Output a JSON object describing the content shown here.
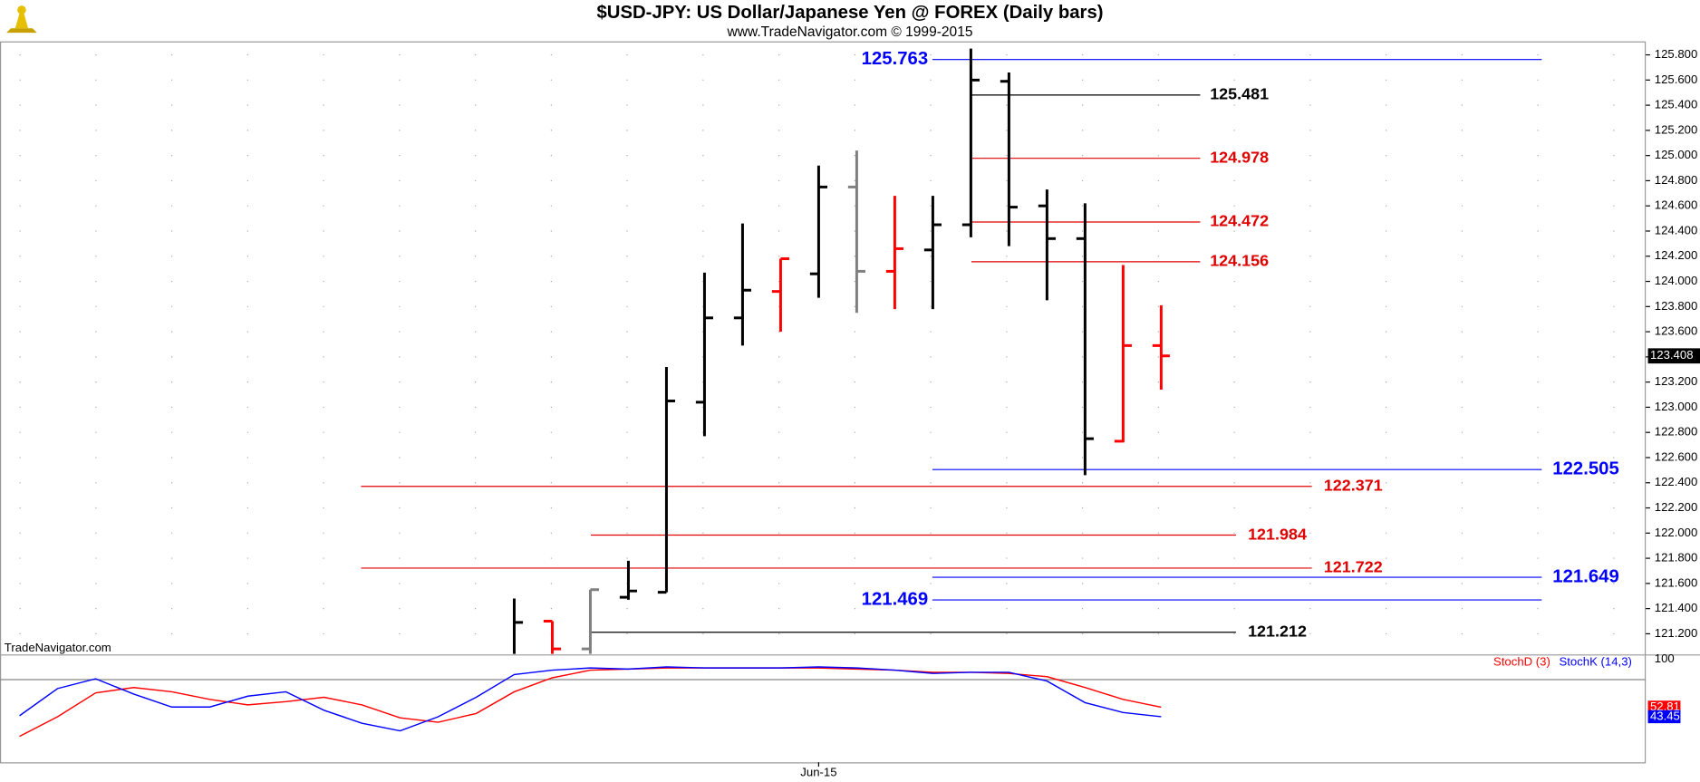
{
  "chart_data": {
    "type": "ohlc",
    "title": "$USD-JPY:  US Dollar/Japanese Yen @ FOREX  (Daily bars)",
    "subtitle": "www.TradeNavigator.com © 1999-2015",
    "watermark": "TradeNavigator.com",
    "categories": [
      null,
      null,
      null,
      null,
      null,
      null,
      null,
      null,
      null,
      null,
      null,
      null,
      null,
      null,
      null,
      null,
      null,
      null,
      null,
      null,
      null,
      "Jun-15",
      null,
      null,
      null,
      null,
      null,
      null,
      null,
      null,
      null
    ],
    "open": [
      null,
      null,
      null,
      null,
      null,
      null,
      null,
      null,
      null,
      null,
      null,
      null,
      null,
      null,
      121.3,
      121.08,
      121.49,
      121.53,
      123.04,
      123.71,
      123.92,
      124.06,
      124.75,
      124.08,
      124.25,
      124.45,
      125.59,
      124.6,
      124.34,
      122.73,
      123.49
    ],
    "high": [
      null,
      null,
      null,
      null,
      null,
      null,
      null,
      null,
      null,
      null,
      null,
      null,
      null,
      121.48,
      121.3,
      121.55,
      121.78,
      123.32,
      124.07,
      124.46,
      124.18,
      124.92,
      125.04,
      124.68,
      124.68,
      125.85,
      125.66,
      124.73,
      124.62,
      124.13,
      123.81
    ],
    "low": [
      null,
      null,
      null,
      null,
      null,
      null,
      null,
      null,
      null,
      null,
      null,
      null,
      null,
      121.0,
      121.0,
      121.0,
      121.47,
      121.53,
      122.77,
      123.49,
      123.6,
      123.87,
      123.75,
      123.78,
      123.78,
      124.35,
      124.28,
      123.85,
      122.46,
      122.72,
      123.14
    ],
    "close": [
      null,
      null,
      null,
      null,
      null,
      null,
      null,
      null,
      null,
      null,
      null,
      null,
      null,
      121.29,
      121.08,
      121.55,
      121.54,
      123.05,
      123.71,
      123.93,
      124.18,
      124.75,
      124.08,
      124.26,
      124.45,
      125.6,
      124.59,
      124.34,
      122.75,
      123.49,
      123.408
    ],
    "bar_colors": [
      null,
      null,
      null,
      null,
      null,
      null,
      null,
      null,
      null,
      null,
      null,
      null,
      null,
      "#000000",
      "#ff0000",
      "#808080",
      "#000000",
      "#000000",
      "#000000",
      "#000000",
      "#ff0000",
      "#000000",
      "#808080",
      "#ff0000",
      "#000000",
      "#000000",
      "#000000",
      "#000000",
      "#000000",
      "#ff0000",
      "#ff0000"
    ],
    "ylim": [
      121.04,
      125.89
    ],
    "yticks": [
      {
        "value": 121.2,
        "label": "121.200"
      },
      {
        "value": 121.4,
        "label": "121.400"
      },
      {
        "value": 121.6,
        "label": "121.600"
      },
      {
        "value": 121.8,
        "label": "121.800"
      },
      {
        "value": 122.0,
        "label": "122.000"
      },
      {
        "value": 122.2,
        "label": "122.200"
      },
      {
        "value": 122.4,
        "label": "122.400"
      },
      {
        "value": 122.6,
        "label": "122.600"
      },
      {
        "value": 122.8,
        "label": "122.800"
      },
      {
        "value": 123.0,
        "label": "123.000"
      },
      {
        "value": 123.2,
        "label": "123.200"
      },
      {
        "value": 123.4,
        "label": "123.400"
      },
      {
        "value": 123.6,
        "label": "123.600"
      },
      {
        "value": 123.8,
        "label": "123.800"
      },
      {
        "value": 124.0,
        "label": "124.000"
      },
      {
        "value": 124.2,
        "label": "124.200"
      },
      {
        "value": 124.4,
        "label": "124.400"
      },
      {
        "value": 124.6,
        "label": "124.600"
      },
      {
        "value": 124.8,
        "label": "124.800"
      },
      {
        "value": 125.0,
        "label": "125.000"
      },
      {
        "value": 125.2,
        "label": "125.200"
      },
      {
        "value": 125.4,
        "label": "125.400"
      },
      {
        "value": 125.6,
        "label": "125.600"
      },
      {
        "value": 125.8,
        "label": "125.800"
      }
    ],
    "grid": true,
    "levels": [
      {
        "value": 125.763,
        "color": "#0000ff"
      },
      {
        "value": 125.481,
        "color": "#000000"
      },
      {
        "value": 124.978,
        "color": "#e00000"
      },
      {
        "value": 124.472,
        "color": "#e00000"
      },
      {
        "value": 124.156,
        "color": "#e00000"
      },
      {
        "value": 122.505,
        "color": "#0000ff"
      },
      {
        "value": 122.371,
        "color": "#e00000"
      },
      {
        "value": 121.984,
        "color": "#e00000"
      },
      {
        "value": 121.722,
        "color": "#e00000"
      },
      {
        "value": 121.649,
        "color": "#0000ff"
      },
      {
        "value": 121.469,
        "color": "#0000ff"
      },
      {
        "value": 121.212,
        "color": "#000000"
      }
    ],
    "indicator": {
      "type": "line",
      "series": [
        {
          "name": "StochD (3)",
          "color": "#ff0000",
          "values": [
            24.1,
            43.4,
            66.9,
            72.2,
            68.0,
            60.5,
            55.1,
            58.3,
            62.6,
            55.1,
            42.3,
            38.0,
            46.6,
            68.0,
            81.8,
            89.3,
            90.4,
            91.5,
            91.5,
            91.5,
            91.5,
            91.5,
            90.4,
            89.3,
            87.2,
            87.2,
            86.1,
            82.9,
            72.2,
            60.5,
            52.81
          ]
        },
        {
          "name": "StochK (14,3)",
          "color": "#0000ff",
          "values": [
            44.4,
            71.2,
            80.8,
            65.8,
            53.0,
            53.0,
            63.7,
            68.0,
            49.8,
            37.0,
            29.5,
            43.4,
            62.6,
            85.0,
            89.3,
            91.5,
            90.4,
            92.5,
            91.5,
            91.5,
            91.5,
            92.5,
            91.5,
            89.3,
            86.1,
            87.2,
            87.2,
            78.6,
            57.3,
            47.6,
            43.45
          ]
        }
      ],
      "ylim": [
        -1.5,
        103.2
      ],
      "yticks": [
        100
      ],
      "hlines": [
        80
      ]
    }
  }
}
